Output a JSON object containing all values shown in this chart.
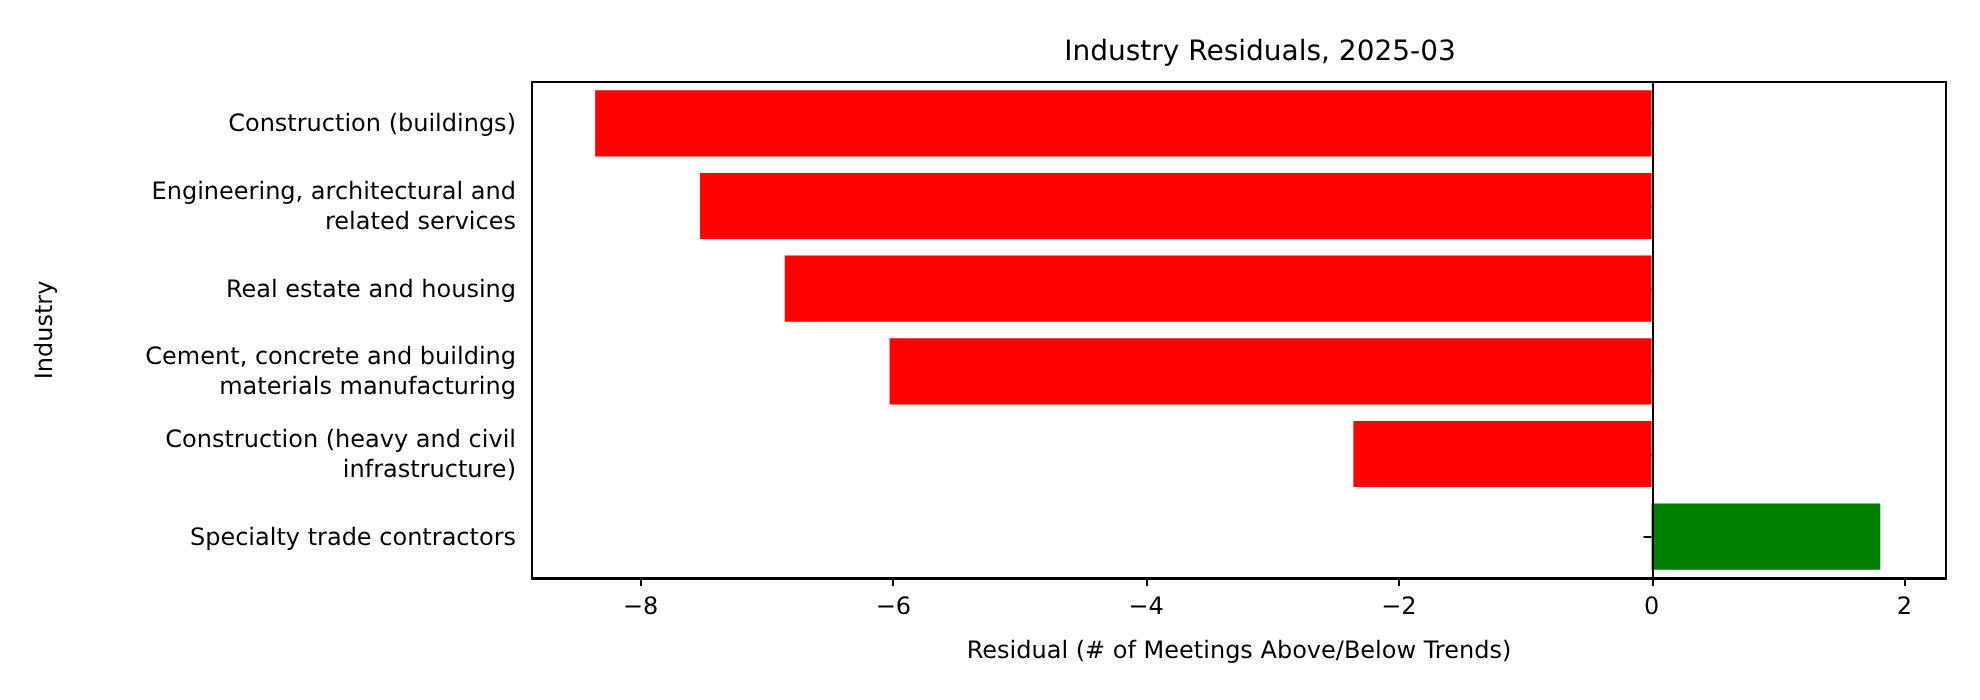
{
  "chart_data": {
    "type": "bar",
    "orientation": "horizontal",
    "title": "Industry Residuals, 2025-03",
    "xlabel": "Residual (# of Meetings Above/Below Trends)",
    "ylabel": "Industry",
    "categories": [
      "Construction (buildings)",
      "Engineering, architectural and\nrelated services",
      "Real estate and housing",
      "Cement, concrete and building\nmaterials manufacturing",
      "Construction (heavy and civil\ninfrastructure)",
      "Specialty trade contractors"
    ],
    "values": [
      -8.36,
      -7.53,
      -6.86,
      -6.03,
      -2.36,
      1.81
    ],
    "colors": [
      "#ff0000",
      "#ff0000",
      "#ff0000",
      "#ff0000",
      "#ff0000",
      "#008000"
    ],
    "xlim": [
      -8.86,
      2.33
    ],
    "xticks": [
      -8,
      -6,
      -4,
      -2,
      0,
      2
    ],
    "ref_lines": [
      {
        "axis": "x",
        "value": 0,
        "color": "#000000",
        "line_style": "solid"
      }
    ],
    "grid": false
  }
}
